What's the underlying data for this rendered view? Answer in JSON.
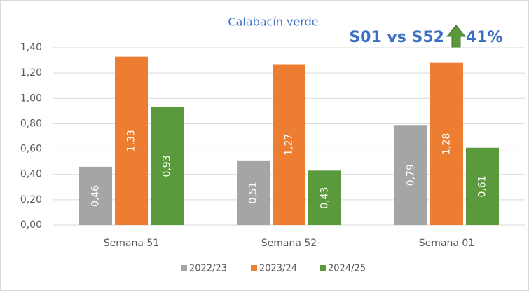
{
  "chart_data": {
    "type": "bar",
    "title": "Calabacín verde",
    "annotations": [
      "S01 vs S52",
      "41%"
    ],
    "categories": [
      "Semana 51",
      "Semana 52",
      "Semana 01"
    ],
    "series": [
      {
        "name": "2022/23",
        "color": "#a5a5a5",
        "values": [
          0.46,
          0.51,
          0.79
        ],
        "value_labels": [
          "0,46",
          "0,51",
          "0,79"
        ]
      },
      {
        "name": "2023/24",
        "color": "#ed7d31",
        "values": [
          1.33,
          1.27,
          1.28
        ],
        "value_labels": [
          "1,33",
          "1,27",
          "1,28"
        ]
      },
      {
        "name": "2024/25",
        "color": "#5b9a3c",
        "values": [
          0.93,
          0.43,
          0.61
        ],
        "value_labels": [
          "0,93",
          "0,43",
          "0,61"
        ]
      }
    ],
    "ylim": [
      0,
      1.4
    ],
    "yticks": [
      {
        "value": 0,
        "label": "0,00"
      },
      {
        "value": 0.2,
        "label": "0,20"
      },
      {
        "value": 0.4,
        "label": "0,40"
      },
      {
        "value": 0.6,
        "label": "0,60"
      },
      {
        "value": 0.8,
        "label": "0,80"
      },
      {
        "value": 1.0,
        "label": "1,00"
      },
      {
        "value": 1.2,
        "label": "1,20"
      },
      {
        "value": 1.4,
        "label": "1,40"
      }
    ],
    "grid": true,
    "legend": "bottom"
  }
}
